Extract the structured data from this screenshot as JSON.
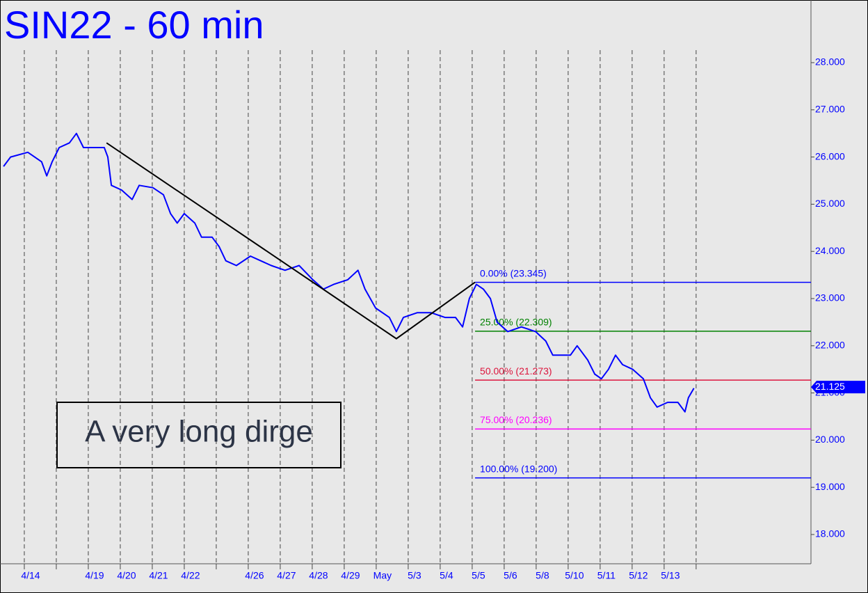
{
  "chart_data": {
    "type": "line",
    "title": "SIN22 - 60 min",
    "annotation": "A very long dirge",
    "xlim": [
      -0.76,
      24.59
    ],
    "ylim": [
      17.38,
      29.25
    ],
    "xticks": [
      {
        "value": 0,
        "label": "4/14"
      },
      {
        "value": 1,
        "label": null
      },
      {
        "value": 2,
        "label": "4/19"
      },
      {
        "value": 3,
        "label": "4/20"
      },
      {
        "value": 4,
        "label": "4/21"
      },
      {
        "value": 5,
        "label": "4/22"
      },
      {
        "value": 6,
        "label": null
      },
      {
        "value": 7,
        "label": "4/26"
      },
      {
        "value": 8,
        "label": "4/27"
      },
      {
        "value": 9,
        "label": "4/28"
      },
      {
        "value": 10,
        "label": "4/29"
      },
      {
        "value": 11,
        "label": "May"
      },
      {
        "value": 12,
        "label": "5/3"
      },
      {
        "value": 13,
        "label": "5/4"
      },
      {
        "value": 14,
        "label": "5/5"
      },
      {
        "value": 15,
        "label": "5/6"
      },
      {
        "value": 16,
        "label": "5/8"
      },
      {
        "value": 17,
        "label": "5/10"
      },
      {
        "value": 18,
        "label": "5/11"
      },
      {
        "value": 19,
        "label": "5/12"
      },
      {
        "value": 20,
        "label": "5/13"
      },
      {
        "value": 21,
        "label": null
      }
    ],
    "yticks": [
      {
        "value": 18,
        "label": "18.000"
      },
      {
        "value": 19,
        "label": "19.000"
      },
      {
        "value": 20,
        "label": "20.000"
      },
      {
        "value": 21,
        "label": "21.000"
      },
      {
        "value": 22,
        "label": "22.000"
      },
      {
        "value": 23,
        "label": "23.000"
      },
      {
        "value": 24,
        "label": "24.000"
      },
      {
        "value": 25,
        "label": "25.000"
      },
      {
        "value": 26,
        "label": "26.000"
      },
      {
        "value": 27,
        "label": "27.000"
      },
      {
        "value": 28,
        "label": "28.000"
      }
    ],
    "series": [
      {
        "name": "SIN22",
        "color": "#0000ff",
        "x": [
          -0.65,
          -0.43,
          0.11,
          0.54,
          0.7,
          0.87,
          1.09,
          1.41,
          1.63,
          1.85,
          2.5,
          2.61,
          2.72,
          3.04,
          3.37,
          3.59,
          4.02,
          4.35,
          4.57,
          4.78,
          5.0,
          5.33,
          5.54,
          5.87,
          6.09,
          6.3,
          6.63,
          7.07,
          7.39,
          7.72,
          8.15,
          8.59,
          9.02,
          9.35,
          9.67,
          10.11,
          10.43,
          10.65,
          10.98,
          11.41,
          11.63,
          11.85,
          12.28,
          12.72,
          13.15,
          13.48,
          13.7,
          13.91,
          14.13,
          14.35,
          14.57,
          14.78,
          15.11,
          15.54,
          15.98,
          16.3,
          16.52,
          16.85,
          17.07,
          17.28,
          17.61,
          17.83,
          18.04,
          18.26,
          18.48,
          18.7,
          19.02,
          19.35,
          19.57,
          19.78,
          20.11,
          20.43,
          20.65,
          20.76,
          20.93
        ],
        "values": [
          25.8,
          26.0,
          26.1,
          25.9,
          25.6,
          25.9,
          26.2,
          26.3,
          26.5,
          26.2,
          26.2,
          26.0,
          25.4,
          25.3,
          25.1,
          25.4,
          25.35,
          25.2,
          24.8,
          24.6,
          24.8,
          24.6,
          24.3,
          24.3,
          24.1,
          23.8,
          23.7,
          23.9,
          23.8,
          23.7,
          23.6,
          23.7,
          23.4,
          23.2,
          23.3,
          23.4,
          23.6,
          23.2,
          22.8,
          22.6,
          22.3,
          22.6,
          22.7,
          22.7,
          22.6,
          22.6,
          22.4,
          23.0,
          23.3,
          23.2,
          23.0,
          22.5,
          22.3,
          22.4,
          22.3,
          22.1,
          21.8,
          21.8,
          21.8,
          22.0,
          21.7,
          21.4,
          21.3,
          21.5,
          21.8,
          21.6,
          21.5,
          21.3,
          20.9,
          20.7,
          20.8,
          20.8,
          20.6,
          20.9,
          21.1
        ]
      }
    ],
    "pattern_line": {
      "color": "#000000",
      "x": [
        2.57,
        11.63,
        14.09
      ],
      "values": [
        26.3,
        22.15,
        23.345
      ]
    },
    "fib_levels": {
      "x_start": 14.09,
      "levels": [
        {
          "value": 23.345,
          "label": "0.00% (23.345)",
          "color": "#0000ff"
        },
        {
          "value": 22.309,
          "label": "25.00% (22.309)",
          "color": "#008000"
        },
        {
          "value": 21.273,
          "label": "50.00% (21.273)",
          "color": "#dc143c"
        },
        {
          "value": 20.236,
          "label": "75.00% (20.236)",
          "color": "#ff00ff"
        },
        {
          "value": 19.2,
          "label": "100.00% (19.200)",
          "color": "#0000ff"
        }
      ]
    },
    "last_price": 21.125
  }
}
